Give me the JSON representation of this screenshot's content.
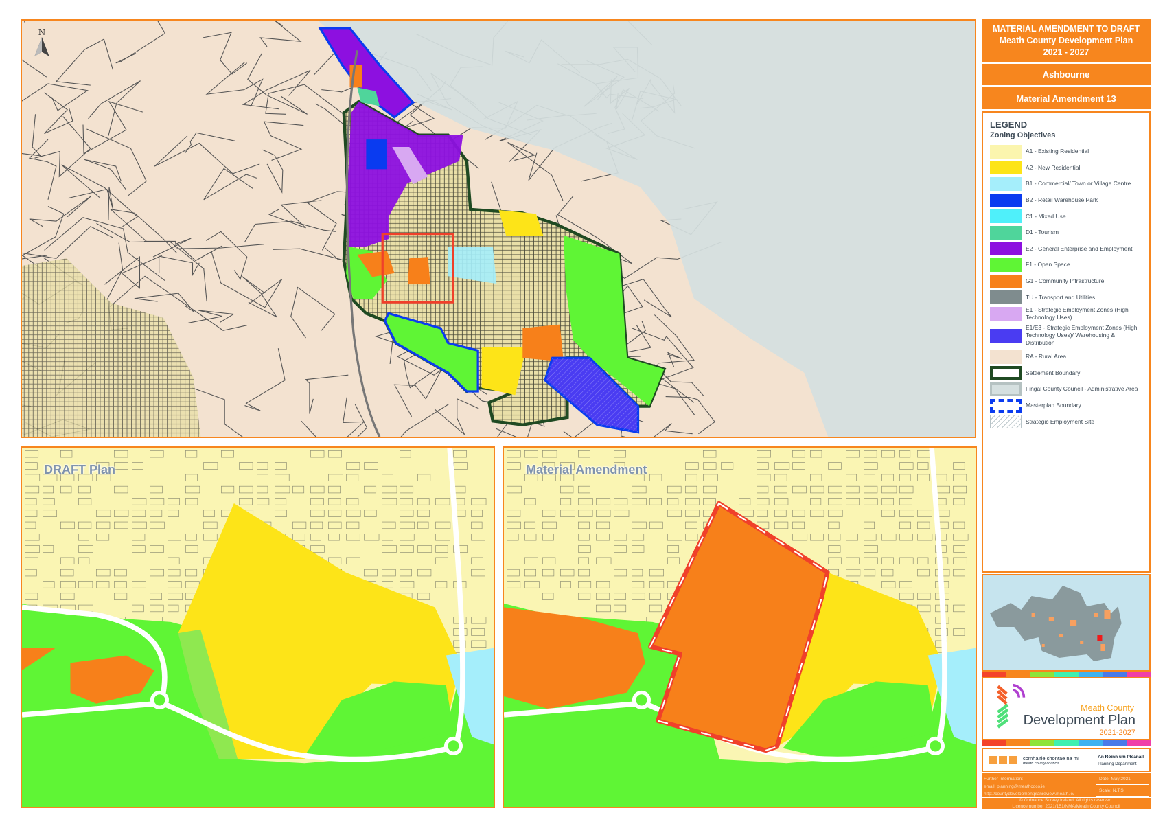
{
  "header": {
    "title_line1": "MATERIAL AMENDMENT TO DRAFT",
    "title_line2": "Meath County Development Plan",
    "title_line3": "2021 - 2027",
    "town": "Ashbourne",
    "amendment": "Material Amendment 13"
  },
  "main_map": {
    "north_label": "N"
  },
  "panels": {
    "draft_label": "DRAFT Plan",
    "amendment_label": "Material Amendment"
  },
  "legend": {
    "heading": "LEGEND",
    "subheading": "Zoning Objectives",
    "items": [
      {
        "label": "A1 - Existing Residential",
        "color": "#fbf5ae",
        "style": "fill"
      },
      {
        "label": "A2 - New Residential",
        "color": "#fde418",
        "style": "fill"
      },
      {
        "label": "B1 - Commercial/ Town or Village Centre",
        "color": "#a5eefb",
        "style": "fill"
      },
      {
        "label": "B2 - Retail Warehouse Park",
        "color": "#0a3bf0",
        "style": "fill"
      },
      {
        "label": "C1 - Mixed Use",
        "color": "#4ff0fa",
        "style": "fill"
      },
      {
        "label": "D1 - Tourism",
        "color": "#4fd59b",
        "style": "fill"
      },
      {
        "label": "E2 - General Enterprise and Employment",
        "color": "#8d10e0",
        "style": "fill"
      },
      {
        "label": "F1 - Open Space",
        "color": "#5ff535",
        "style": "fill"
      },
      {
        "label": "G1 - Community Infrastructure",
        "color": "#f7801a",
        "style": "fill"
      },
      {
        "label": "TU - Transport and Utilities",
        "color": "#7f8c8e",
        "style": "fill"
      },
      {
        "label": "E1 - Strategic Employment Zones (High Technology Uses)",
        "color": "#d8a8f2",
        "style": "fill"
      },
      {
        "label": "E1/E3 - Strategic Employment Zones (High Technology Uses)/ Warehousing & Distribution",
        "color": "#4a3cf2",
        "style": "fill"
      },
      {
        "label": "RA - Rural Area",
        "color": "#f3e2d0",
        "style": "fill"
      },
      {
        "label": "Settlement Boundary",
        "color": "#1f4a22",
        "style": "outline"
      },
      {
        "label": "Fingal County Council - Administrative Area",
        "color": "#d5e0e0",
        "style": "grey"
      },
      {
        "label": "Masterplan Boundary",
        "color": "#0a3bf0",
        "style": "dashed"
      },
      {
        "label": "Strategic Employment Site",
        "color": "#b8c4c8",
        "style": "hatch"
      }
    ]
  },
  "logo": {
    "line1": "Meath County",
    "line2": "Development Plan",
    "line3": "2021-2027"
  },
  "council": {
    "irish_name": "comhairle chontae na mí",
    "english_name": "meath county council",
    "dept_irish": "An Roinn um Pleanáil",
    "dept_english": "Planning Department"
  },
  "footer": {
    "info_label": "Further Information:",
    "email": "email: planning@meathcoco.ie",
    "url": "http://countydevelopmentplanreview.meath.ie/",
    "date": "Date: May 2021",
    "scale": "Scale: N.T.S",
    "copyright": "© Ordnance Survey Ireland. All rights reserved.",
    "licence": "Licence number 2021/151/NMA/Meath County Council"
  },
  "colors": {
    "accent": "#f7861e",
    "strip": [
      "#f4432a",
      "#f7861e",
      "#8ee43a",
      "#3ff0b0",
      "#3fb2f0",
      "#4a7ae8",
      "#f03fa8"
    ]
  }
}
